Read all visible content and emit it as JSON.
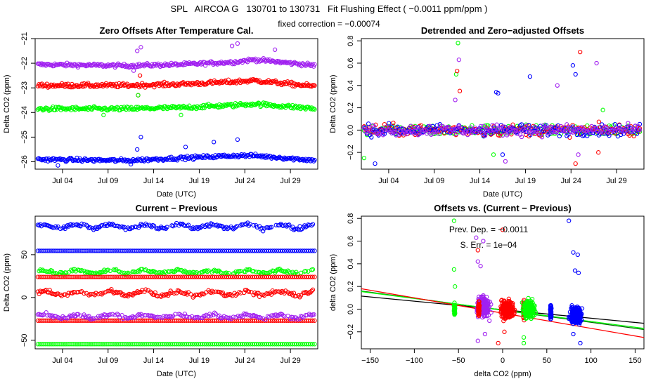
{
  "header": {
    "title": "SPL   AIRCOA G   130701 to 130731   Fit Flushing Effect ( −0.0011 ppm/ppm )",
    "subtitle": "fixed correction = −0.00074"
  },
  "colors": {
    "blue": "#0000ff",
    "red": "#ff0000",
    "green": "#00ff00",
    "purple": "#a020f0",
    "black": "#000000",
    "dark_green": "#006400"
  },
  "chart_data": [
    {
      "type": "scatter",
      "title": "Zero Offsets After Temperature Cal.",
      "xlabel": "Date (UTC)",
      "ylabel": "Delta CO2 (ppm)",
      "x_range_days": [
        0,
        31
      ],
      "ylim": [
        -26.3,
        -21
      ],
      "x_ticks": [
        {
          "day": 3,
          "label": "Jul 04"
        },
        {
          "day": 8,
          "label": "Jul 09"
        },
        {
          "day": 13,
          "label": "Jul 14"
        },
        {
          "day": 18,
          "label": "Jul 19"
        },
        {
          "day": 23,
          "label": "Jul 24"
        },
        {
          "day": 28,
          "label": "Jul 29"
        }
      ],
      "y_ticks": [
        -26,
        -25,
        -24,
        -23,
        -22,
        -21
      ],
      "series": [
        {
          "color": "purple",
          "level": -22.05,
          "spread": 0.07,
          "profile": [
            [
              0,
              -22.05
            ],
            [
              10,
              -22.1
            ],
            [
              16,
              -22.05
            ],
            [
              22,
              -21.95
            ],
            [
              24,
              -21.85
            ],
            [
              31,
              -22.1
            ]
          ],
          "outliers": [
            [
              11.2,
              -21.5
            ],
            [
              11.6,
              -21.35
            ],
            [
              21.6,
              -21.3
            ],
            [
              22.2,
              -21.2
            ],
            [
              26.3,
              -21.45
            ],
            [
              10.8,
              -22.3
            ]
          ]
        },
        {
          "color": "red",
          "level": -22.95,
          "spread": 0.08,
          "profile": [
            [
              0,
              -22.9
            ],
            [
              10,
              -22.9
            ],
            [
              16,
              -22.85
            ],
            [
              22,
              -22.75
            ],
            [
              24,
              -22.7
            ],
            [
              31,
              -22.95
            ]
          ],
          "outliers": [
            [
              11.5,
              -22.5
            ],
            [
              11.3,
              -23.3
            ]
          ]
        },
        {
          "color": "green",
          "level": -23.85,
          "spread": 0.08,
          "profile": [
            [
              0,
              -23.85
            ],
            [
              10,
              -23.85
            ],
            [
              16,
              -23.8
            ],
            [
              22,
              -23.7
            ],
            [
              24,
              -23.65
            ],
            [
              31,
              -23.85
            ]
          ],
          "outliers": [
            [
              11.3,
              -23.3
            ],
            [
              7.5,
              -24.1
            ],
            [
              16,
              -24.1
            ]
          ]
        },
        {
          "color": "blue",
          "level": -25.9,
          "spread": 0.07,
          "profile": [
            [
              0,
              -25.9
            ],
            [
              10,
              -25.95
            ],
            [
              16,
              -25.85
            ],
            [
              22,
              -25.75
            ],
            [
              24,
              -25.75
            ],
            [
              31,
              -25.95
            ]
          ],
          "outliers": [
            [
              11.2,
              -25.5
            ],
            [
              11.6,
              -25.0
            ],
            [
              16.5,
              -25.4
            ],
            [
              19.6,
              -25.2
            ],
            [
              22.2,
              -25.1
            ],
            [
              2.5,
              -26.15
            ],
            [
              10.5,
              -26.1
            ]
          ]
        }
      ]
    },
    {
      "type": "scatter",
      "title": "Detrended and Zero−adjusted Offsets",
      "xlabel": "Date (UTC)",
      "ylabel": "Delta CO2 (ppm)",
      "x_range_days": [
        0,
        31
      ],
      "ylim": [
        -0.35,
        0.82
      ],
      "x_ticks": [
        {
          "day": 3,
          "label": "Jul 04"
        },
        {
          "day": 8,
          "label": "Jul 09"
        },
        {
          "day": 13,
          "label": "Jul 14"
        },
        {
          "day": 18,
          "label": "Jul 19"
        },
        {
          "day": 23,
          "label": "Jul 24"
        },
        {
          "day": 28,
          "label": "Jul 29"
        }
      ],
      "y_ticks": [
        {
          "value": -0.2,
          "label": "−0.2"
        },
        {
          "value": 0.0,
          "label": "0.0"
        },
        {
          "value": 0.2,
          "label": "0.2"
        },
        {
          "value": 0.4,
          "label": "0.4"
        },
        {
          "value": 0.6,
          "label": "0.6"
        },
        {
          "value": 0.8,
          "label": "0.8"
        }
      ],
      "series": [
        {
          "color": "green",
          "outliers": [
            [
              10.6,
              0.78
            ],
            [
              10.4,
              0.5
            ],
            [
              26.5,
              0.18
            ],
            [
              14.5,
              -0.22
            ],
            [
              0.3,
              -0.25
            ]
          ]
        },
        {
          "color": "red",
          "outliers": [
            [
              10.5,
              0.53
            ],
            [
              10.8,
              0.35
            ],
            [
              24.0,
              0.7
            ],
            [
              23.5,
              -0.3
            ],
            [
              26.0,
              -0.2
            ]
          ]
        },
        {
          "color": "blue",
          "outliers": [
            [
              14.8,
              0.34
            ],
            [
              15.0,
              0.33
            ],
            [
              18.5,
              0.48
            ],
            [
              23.2,
              0.58
            ],
            [
              23.5,
              0.5
            ],
            [
              1.5,
              -0.3
            ],
            [
              15.5,
              -0.22
            ]
          ]
        },
        {
          "color": "purple",
          "outliers": [
            [
              10.7,
              0.63
            ],
            [
              10.3,
              0.27
            ],
            [
              21.5,
              0.4
            ],
            [
              25.8,
              0.6
            ],
            [
              15.8,
              -0.28
            ],
            [
              23.8,
              -0.22
            ]
          ]
        }
      ]
    },
    {
      "type": "scatter",
      "title": "Current − Previous",
      "xlabel": "Date (UTC)",
      "ylabel": "Delta CO2 (ppm)",
      "x_range_days": [
        0,
        31
      ],
      "ylim": [
        -60,
        95
      ],
      "x_ticks": [
        {
          "day": 3,
          "label": "Jul 04"
        },
        {
          "day": 8,
          "label": "Jul 09"
        },
        {
          "day": 13,
          "label": "Jul 14"
        },
        {
          "day": 18,
          "label": "Jul 19"
        },
        {
          "day": 23,
          "label": "Jul 24"
        },
        {
          "day": 28,
          "label": "Jul 29"
        }
      ],
      "y_ticks": [
        {
          "value": -50,
          "label": "−50"
        },
        {
          "value": 0,
          "label": "0"
        },
        {
          "value": 50,
          "label": "50"
        }
      ],
      "series": [
        {
          "color": "blue",
          "level": 83,
          "spread": 3.5
        },
        {
          "color": "blue",
          "level": 54.5,
          "spread": 0
        },
        {
          "color": "green",
          "level": 30,
          "spread": 3
        },
        {
          "color": "red",
          "level": 24,
          "spread": 0
        },
        {
          "color": "red",
          "level": 5,
          "spread": 4
        },
        {
          "color": "red",
          "level": -27,
          "spread": 0
        },
        {
          "color": "purple",
          "level": -22,
          "spread": 3.5
        },
        {
          "color": "green",
          "level": -54.5,
          "spread": 0
        }
      ]
    },
    {
      "type": "scatter",
      "title": "Offsets vs. (Current − Previous)",
      "xlabel": "delta CO2 (ppm)",
      "ylabel": "delta CO2 (ppm)",
      "xlim": [
        -160,
        160
      ],
      "ylim": [
        -0.35,
        0.82
      ],
      "x_ticks": [
        {
          "value": -150,
          "label": "−150"
        },
        {
          "value": -100,
          "label": "−100"
        },
        {
          "value": -50,
          "label": "−50"
        },
        {
          "value": 0,
          "label": "0"
        },
        {
          "value": 50,
          "label": "50"
        },
        {
          "value": 100,
          "label": "100"
        },
        {
          "value": 150,
          "label": "150"
        }
      ],
      "y_ticks": [
        {
          "value": -0.2,
          "label": "−0.2"
        },
        {
          "value": 0.0,
          "label": "0.0"
        },
        {
          "value": 0.2,
          "label": "0.2"
        },
        {
          "value": 0.4,
          "label": "0.4"
        },
        {
          "value": 0.6,
          "label": "0.6"
        },
        {
          "value": 0.8,
          "label": "0.8"
        }
      ],
      "annotations": [
        "Prev. Dep. =  −0.0011",
        "S. Err. =  1e−04"
      ],
      "clusters": [
        {
          "color": "green",
          "x": -54.5,
          "xspread": 0.6,
          "ycenter": 0,
          "yspread": 0.05
        },
        {
          "color": "purple",
          "x": -22,
          "xspread": 6,
          "ycenter": 0.02,
          "yspread": 0.08
        },
        {
          "color": "red",
          "x": -27,
          "xspread": 0.6,
          "ycenter": 0.0,
          "yspread": 0.05
        },
        {
          "color": "red",
          "x": 5,
          "xspread": 7,
          "ycenter": 0.0,
          "yspread": 0.08
        },
        {
          "color": "red",
          "x": 24,
          "xspread": 0.6,
          "ycenter": 0.0,
          "yspread": 0.07
        },
        {
          "color": "green",
          "x": 30,
          "xspread": 6,
          "ycenter": 0.0,
          "yspread": 0.07
        },
        {
          "color": "blue",
          "x": 54.5,
          "xspread": 0.6,
          "ycenter": -0.02,
          "yspread": 0.06
        },
        {
          "color": "blue",
          "x": 83,
          "xspread": 6,
          "ycenter": -0.05,
          "yspread": 0.07
        }
      ],
      "outliers": [
        {
          "color": "green",
          "points": [
            [
              -55,
              0.78
            ],
            [
              -55,
              0.35
            ],
            [
              -54,
              0.2
            ],
            [
              24,
              -0.25
            ],
            [
              24,
              -0.3
            ]
          ]
        },
        {
          "color": "purple",
          "points": [
            [
              -30,
              0.63
            ],
            [
              -28,
              0.42
            ],
            [
              -25,
              0.38
            ],
            [
              -22,
              0.6
            ],
            [
              -28,
              -0.28
            ],
            [
              -20,
              -0.22
            ]
          ]
        },
        {
          "color": "red",
          "points": [
            [
              -28,
              0.52
            ],
            [
              0,
              0.7
            ],
            [
              -5,
              -0.3
            ],
            [
              2,
              -0.2
            ]
          ]
        },
        {
          "color": "blue",
          "points": [
            [
              75,
              0.78
            ],
            [
              80,
              0.5
            ],
            [
              85,
              0.48
            ],
            [
              82,
              0.34
            ],
            [
              86,
              0.32
            ],
            [
              88,
              -0.3
            ],
            [
              80,
              -0.22
            ]
          ]
        }
      ],
      "fit_lines": [
        {
          "color": "black",
          "x": [
            -160,
            160
          ],
          "y": [
            0.115,
            -0.125
          ]
        },
        {
          "color": "dark_green",
          "x": [
            -160,
            160
          ],
          "y": [
            0.16,
            -0.18
          ]
        },
        {
          "color": "green",
          "x": [
            -160,
            160
          ],
          "y": [
            0.155,
            -0.17
          ]
        },
        {
          "color": "red",
          "x": [
            -160,
            160
          ],
          "y": [
            0.18,
            -0.25
          ]
        }
      ]
    }
  ]
}
